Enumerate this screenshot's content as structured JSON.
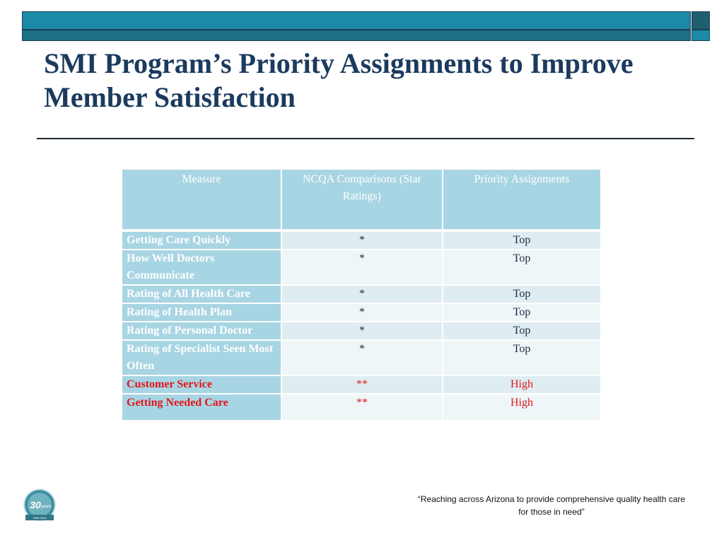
{
  "title": "SMI Program’s Priority Assignments to Improve Member Satisfaction",
  "table": {
    "headers": [
      "Measure",
      "NCQA Comparisons (Star Ratings)",
      "Priority Assignments"
    ],
    "rows": [
      {
        "measure": "Getting Care Quickly",
        "ncqa": "*",
        "priority": "Top",
        "highlight": false
      },
      {
        "measure": "How Well Doctors Communicate",
        "ncqa": "*",
        "priority": "Top",
        "highlight": false
      },
      {
        "measure": "Rating of All Health Care",
        "ncqa": "*",
        "priority": "Top",
        "highlight": false
      },
      {
        "measure": "Rating of Health Plan",
        "ncqa": "*",
        "priority": "Top",
        "highlight": false
      },
      {
        "measure": "Rating of Personal Doctor",
        "ncqa": "*",
        "priority": "Top",
        "highlight": false
      },
      {
        "measure": "Rating of Specialist Seen Most Often",
        "ncqa": "*",
        "priority": "Top",
        "highlight": false
      },
      {
        "measure": "Customer Service",
        "ncqa": "**",
        "priority": "High",
        "highlight": true
      },
      {
        "measure": "Getting Needed Care",
        "ncqa": "**",
        "priority": "High",
        "highlight": true
      }
    ]
  },
  "footer_quote": "“Reaching across Arizona to provide comprehensive quality health care for those in need”",
  "logo": {
    "text": "30",
    "sub": "years",
    "years": "1986 2016"
  },
  "colors": {
    "title": "#1b3a5e",
    "header_fill": "#a8d5e3",
    "highlight": "#e3151b",
    "bar": "#1a8aa8"
  }
}
